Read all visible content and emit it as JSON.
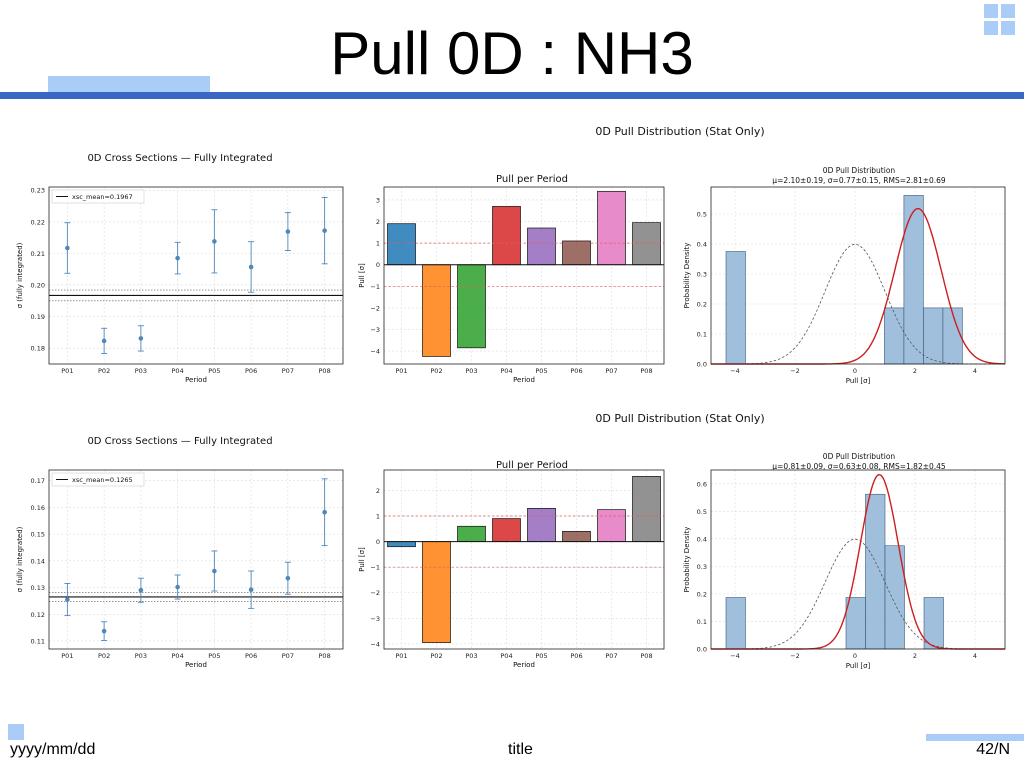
{
  "slide": {
    "title": "Pull 0D : NH3",
    "footer_date": "yyyy/mm/dd",
    "footer_title": "title",
    "footer_page": "42/N",
    "accent_color": "#3a67c4",
    "light_accent": "#a9cdf7"
  },
  "chart_data": [
    {
      "type": "scatter",
      "title": "0D Cross Sections — Fully Integrated",
      "xlabel": "Period",
      "ylabel": "σ (fully integrated)",
      "categories": [
        "P01",
        "P02",
        "P03",
        "P04",
        "P05",
        "P06",
        "P07",
        "P08"
      ],
      "values": [
        0.2117,
        0.1823,
        0.1831,
        0.2085,
        0.2138,
        0.2057,
        0.2169,
        0.2172
      ],
      "errors": [
        0.008,
        0.004,
        0.004,
        0.005,
        0.01,
        0.008,
        0.006,
        0.0105
      ],
      "ylim": [
        0.175,
        0.231
      ],
      "yticks": [
        0.18,
        0.19,
        0.2,
        0.21,
        0.22,
        0.23
      ],
      "tick_labels": [
        "0.18",
        "0.19",
        "0.20",
        "0.21",
        "0.22",
        "0.23"
      ],
      "mean": 0.1967,
      "mean_band": [
        0.195,
        0.1984
      ],
      "legend": "xsc_mean=0.1967",
      "grid": true,
      "legend_position": "top-left"
    },
    {
      "type": "bar",
      "title": "Pull per Period",
      "xlabel": "Period",
      "ylabel": "Pull [σ]",
      "categories": [
        "P01",
        "P02",
        "P03",
        "P04",
        "P05",
        "P06",
        "P07",
        "P08"
      ],
      "values": [
        1.9,
        -4.25,
        -3.85,
        2.7,
        1.7,
        1.1,
        3.4,
        1.95
      ],
      "colors": [
        "#1f77b4",
        "#ff7f0e",
        "#2ca02c",
        "#d62728",
        "#9467bd",
        "#8c564b",
        "#e377c2",
        "#7f7f7f"
      ],
      "ylim": [
        -4.6,
        3.6
      ],
      "yticks": [
        -4,
        -3,
        -2,
        -1,
        0,
        1,
        2,
        3
      ],
      "tick_labels": [
        "−4",
        "−3",
        "−2",
        "−1",
        "0",
        "1",
        "2",
        "3"
      ],
      "ref_lines": [
        1,
        -1
      ],
      "grid": true
    },
    {
      "type": "bar",
      "heading": "0D Pull Distribution (Stat Only)",
      "title": "0D Pull Distribution",
      "subtitle": "μ=2.10±0.19,  σ=0.77±0.15,  RMS=2.81±0.69",
      "xlabel": "Pull [σ]",
      "ylabel": "Probability Density",
      "bins": [
        [
          -4.3,
          -3.65
        ],
        [
          0.98,
          1.63
        ],
        [
          1.63,
          2.28
        ],
        [
          2.28,
          2.93
        ],
        [
          2.93,
          3.58
        ]
      ],
      "values": [
        0.375,
        0.187,
        0.562,
        0.187,
        0.187
      ],
      "fit": {
        "mu": 2.1,
        "sigma": 0.77,
        "color": "#cc1f1f"
      },
      "reference": {
        "mu": 0,
        "sigma": 1
      },
      "xlim": [
        -4.8,
        5
      ],
      "ylim": [
        0,
        0.59
      ],
      "xticks": [
        -4,
        -2,
        0,
        2,
        4
      ],
      "xtick_labels": [
        "−4",
        "−2",
        "0",
        "2",
        "4"
      ],
      "yticks": [
        0,
        0.1,
        0.2,
        0.3,
        0.4,
        0.5
      ],
      "ytick_labels": [
        "0.0",
        "0.1",
        "0.2",
        "0.3",
        "0.4",
        "0.5"
      ],
      "grid": true
    },
    {
      "type": "scatter",
      "title": "0D Cross Sections — Fully Integrated",
      "xlabel": "Period",
      "ylabel": "σ (fully integrated)",
      "categories": [
        "P01",
        "P02",
        "P03",
        "P04",
        "P05",
        "P06",
        "P07",
        "P08"
      ],
      "values": [
        0.1255,
        0.1137,
        0.129,
        0.1302,
        0.1362,
        0.1292,
        0.1335,
        0.1582
      ],
      "errors": [
        0.006,
        0.0035,
        0.0045,
        0.0045,
        0.0075,
        0.007,
        0.006,
        0.0125
      ],
      "ylim": [
        0.107,
        0.174
      ],
      "yticks": [
        0.11,
        0.12,
        0.13,
        0.14,
        0.15,
        0.16,
        0.17
      ],
      "tick_labels": [
        "0.11",
        "0.12",
        "0.13",
        "0.14",
        "0.15",
        "0.16",
        "0.17"
      ],
      "mean": 0.1265,
      "mean_band": [
        0.1248,
        0.1282
      ],
      "legend": "xsc_mean=0.1265",
      "grid": true,
      "legend_position": "top-left"
    },
    {
      "type": "bar",
      "title": "Pull per Period",
      "xlabel": "Period",
      "ylabel": "Pull [σ]",
      "categories": [
        "P01",
        "P02",
        "P03",
        "P04",
        "P05",
        "P06",
        "P07",
        "P08"
      ],
      "values": [
        -0.2,
        -3.95,
        0.6,
        0.9,
        1.3,
        0.4,
        1.25,
        2.55
      ],
      "colors": [
        "#1f77b4",
        "#ff7f0e",
        "#2ca02c",
        "#d62728",
        "#9467bd",
        "#8c564b",
        "#e377c2",
        "#7f7f7f"
      ],
      "ylim": [
        -4.2,
        2.8
      ],
      "yticks": [
        -4,
        -3,
        -2,
        -1,
        0,
        1,
        2
      ],
      "tick_labels": [
        "−4",
        "−3",
        "−2",
        "−1",
        "0",
        "1",
        "2"
      ],
      "ref_lines": [
        1,
        -1
      ],
      "grid": true
    },
    {
      "type": "bar",
      "heading": "0D Pull Distribution (Stat Only)",
      "title": "0D Pull Distribution",
      "subtitle": "μ=0.81±0.09,  σ=0.63±0.08,  RMS=1.82±0.45",
      "xlabel": "Pull [σ]",
      "ylabel": "Probability Density",
      "bins": [
        [
          -4.3,
          -3.65
        ],
        [
          -0.3,
          0.35
        ],
        [
          0.35,
          1.0
        ],
        [
          1.0,
          1.65
        ],
        [
          2.3,
          2.95
        ]
      ],
      "values": [
        0.187,
        0.187,
        0.562,
        0.375,
        0.187
      ],
      "fit": {
        "mu": 0.81,
        "sigma": 0.63,
        "color": "#cc1f1f"
      },
      "reference": {
        "mu": 0,
        "sigma": 1
      },
      "xlim": [
        -4.8,
        5
      ],
      "ylim": [
        0,
        0.65
      ],
      "xticks": [
        -4,
        -2,
        0,
        2,
        4
      ],
      "xtick_labels": [
        "−4",
        "−2",
        "0",
        "2",
        "4"
      ],
      "yticks": [
        0,
        0.1,
        0.2,
        0.3,
        0.4,
        0.5,
        0.6
      ],
      "ytick_labels": [
        "0.0",
        "0.1",
        "0.2",
        "0.3",
        "0.4",
        "0.5",
        "0.6"
      ],
      "grid": true
    }
  ]
}
